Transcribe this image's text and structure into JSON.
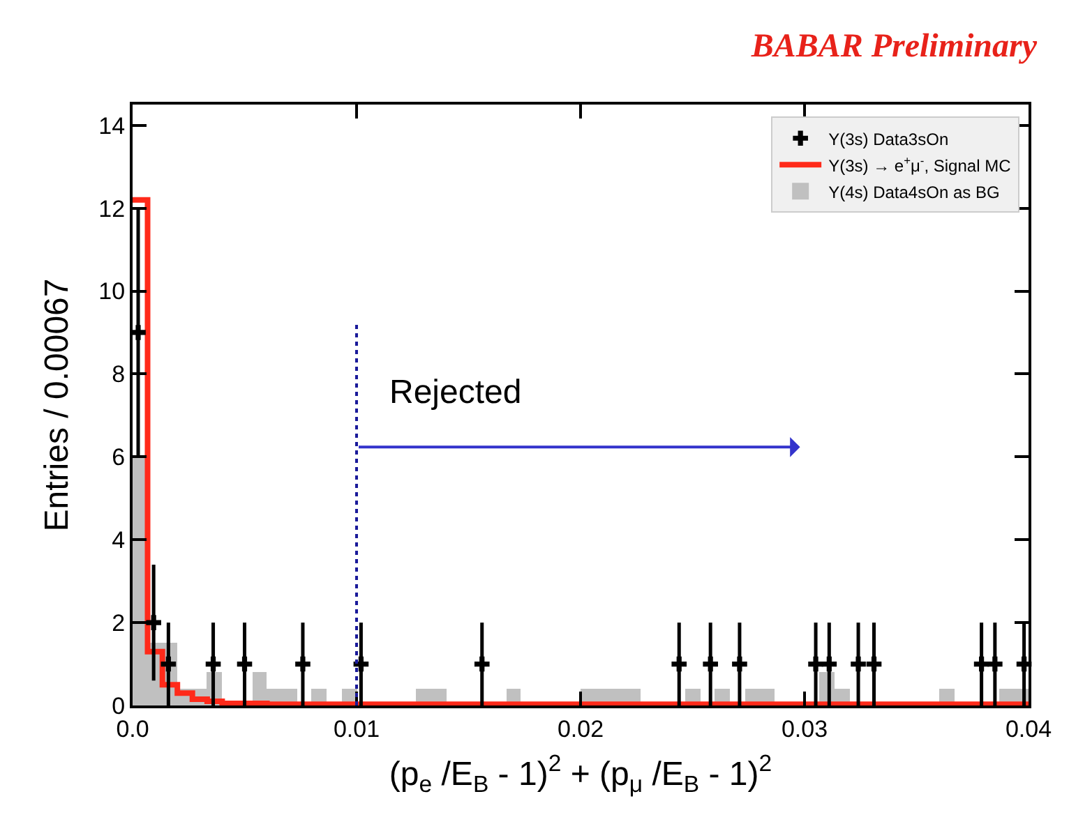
{
  "chart_data": {
    "type": "histogram",
    "title": "BABAR Preliminary",
    "xlabel": "(p$_{e}$ /E$_{B}$ - 1)$^{2}$ + (p$_{μ}$ /E$_{B}$ - 1)$^{2}$",
    "ylabel": "Entries / 0.00067",
    "bins": [
      0,
      0.00067,
      0.00133,
      0.002,
      0.00267,
      0.00333,
      0.004,
      0.00467,
      0.00533,
      0.006,
      0.00667,
      0.00733,
      0.008,
      0.00867,
      0.00933,
      0.01,
      0.01067,
      0.01133,
      0.012,
      0.01267,
      0.01333,
      0.014,
      0.01467,
      0.01533,
      0.016,
      0.01667,
      0.01733,
      0.018,
      0.01867,
      0.01933,
      0.02,
      0.02067,
      0.02133,
      0.022,
      0.02267,
      0.02333,
      0.024,
      0.02467,
      0.02533,
      0.026,
      0.02667,
      0.02733,
      0.028,
      0.02867,
      0.02933,
      0.03,
      0.03067,
      0.03133,
      0.032,
      0.03267,
      0.03333,
      0.034,
      0.03467,
      0.03533,
      0.036,
      0.03667,
      0.03733,
      0.038,
      0.03867,
      0.03933,
      0.04
    ],
    "series": [
      {
        "name": "Υ(4s) Data4sOn as BG",
        "color": "#c0c0c0",
        "values": [
          6.0,
          1.5,
          1.5,
          0.4,
          0.4,
          0.8,
          0,
          0,
          0.8,
          0.4,
          0.4,
          0,
          0.4,
          0,
          0.4,
          0,
          0,
          0,
          0,
          0.4,
          0.4,
          0,
          0,
          0,
          0,
          0.4,
          0,
          0,
          0,
          0,
          0.4,
          0.4,
          0.4,
          0.4,
          0,
          0,
          0,
          0.4,
          0,
          0.4,
          0,
          0.4,
          0.4,
          0,
          0,
          0,
          0.8,
          0.4,
          0,
          0,
          0,
          0,
          0,
          0,
          0.4,
          0,
          0,
          0,
          0.4,
          0.4
        ]
      },
      {
        "name": "Υ(3s) → e$^{+}$μ$^{-}$, Signal MC",
        "type": "step",
        "color": "#ff2a1a",
        "x": [
          0,
          0.00067,
          0.00133,
          0.002,
          0.00267,
          0.00333,
          0.004,
          0.006,
          0.04
        ],
        "values": [
          12.2,
          1.3,
          0.5,
          0.3,
          0.15,
          0.1,
          0.05,
          0.03,
          0.03
        ]
      },
      {
        "name": "Υ(3s) Data3sOn",
        "type": "scatter",
        "marker": "cross",
        "color": "#000000",
        "x": [
          0.00025,
          0.00094,
          0.0016,
          0.0036,
          0.005,
          0.0076,
          0.0102,
          0.0156,
          0.0244,
          0.0258,
          0.0271,
          0.0305,
          0.0311,
          0.0324,
          0.0331,
          0.0379,
          0.0385,
          0.0398
        ],
        "values": [
          9,
          2,
          1,
          1,
          1,
          1,
          1,
          1,
          1,
          1,
          1,
          1,
          1,
          1,
          1,
          1,
          1,
          1
        ],
        "errors": [
          3,
          1.4,
          1,
          1,
          1,
          1,
          1,
          1,
          1,
          1,
          1,
          1,
          1,
          1,
          1,
          1,
          1,
          1
        ]
      }
    ],
    "xlim": [
      0,
      0.04
    ],
    "xticks": [
      {
        "value": 0,
        "label": "0.0"
      },
      0.01,
      0.02,
      0.03,
      0.04
    ],
    "ylim": [
      0,
      14.5
    ],
    "yticks": [
      0,
      2,
      4,
      6,
      8,
      10,
      12,
      14
    ],
    "ref_lines": [
      {
        "axis": "x",
        "value": 0.01,
        "color": "#1a1a9a",
        "line_style": "dotted"
      }
    ],
    "annotations": [
      "Rejected"
    ],
    "legend": "top right"
  }
}
